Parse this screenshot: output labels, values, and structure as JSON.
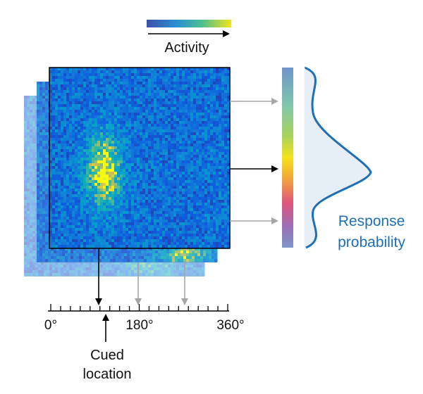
{
  "colorbar_label": "Activity",
  "axis": {
    "ticks": [
      "0°",
      "180°",
      "360°"
    ],
    "range_deg": [
      0,
      360
    ],
    "minor_tick_count": 19
  },
  "cue": {
    "label_line1": "Cued",
    "label_line2": "location",
    "angle_deg": 108
  },
  "response": {
    "label_line1": "Response",
    "label_line2": "probability"
  },
  "projections_deg": [
    180,
    270
  ],
  "colors": {
    "accent_blue": "#1f6fb4",
    "arrow_gray": "#a6a6a6",
    "curve_fill": "#e6eef8"
  },
  "heatmap": {
    "colormap": "parula",
    "front_hotspot": "left-center",
    "back_hotspot": "bottom-right"
  }
}
